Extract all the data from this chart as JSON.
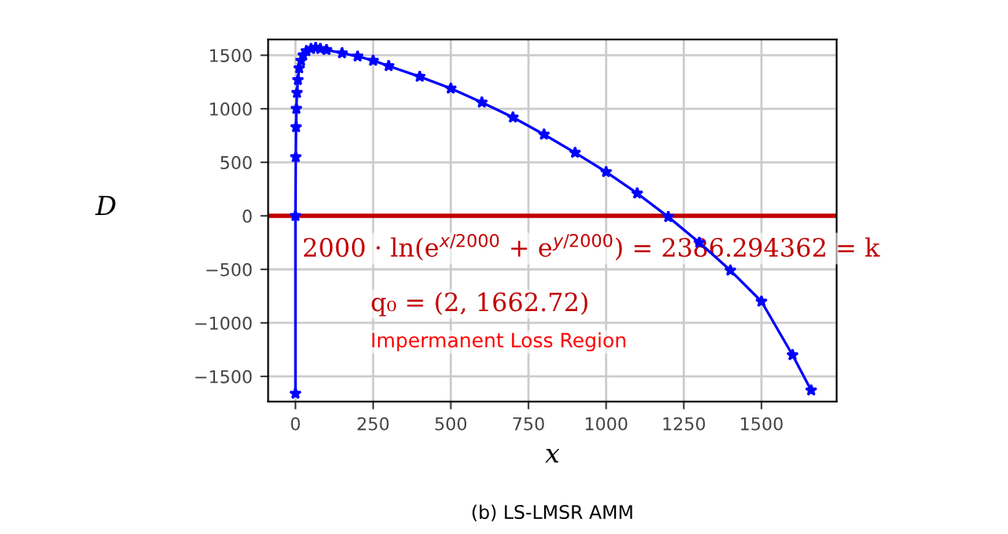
{
  "chart_data": {
    "type": "line",
    "title": "(b) LS-LMSR AMM",
    "xlabel": "x",
    "ylabel": "D",
    "annotations": [
      "2000 · ln(e$^{x/2000}$ + e$^{y/2000}$) = 2386.294362 = k",
      "q₀ = (2, 1662.72)",
      "Impermanent Loss Region"
    ],
    "series": [
      {
        "color": "#0000ff",
        "x": [
          0,
          0,
          1,
          2,
          3,
          5,
          8,
          12,
          18,
          25,
          35,
          50,
          65,
          80,
          100,
          150,
          200,
          250,
          300,
          400,
          500,
          600,
          700,
          800,
          900,
          1000,
          1100,
          1200,
          1300,
          1400,
          1500,
          1600,
          1660
        ],
        "values": [
          -1660,
          0,
          550,
          830,
          1000,
          1150,
          1270,
          1380,
          1450,
          1500,
          1540,
          1560,
          1570,
          1560,
          1550,
          1520,
          1490,
          1450,
          1400,
          1300,
          1190,
          1060,
          920,
          760,
          590,
          410,
          210,
          -10,
          -250,
          -510,
          -800,
          -1300,
          -1630
        ]
      }
    ],
    "marker": "star",
    "line_style": "solid",
    "ref_lines": [
      {
        "axis": "y",
        "value": 0,
        "color": "#c00000"
      }
    ],
    "xlim": [
      -88,
      1742
    ],
    "ylim": [
      -1735,
      1647
    ],
    "xticks": [
      0,
      250,
      500,
      750,
      1000,
      1250,
      1500
    ],
    "yticks": [
      -1500,
      -1000,
      -500,
      0,
      500,
      1000,
      1500
    ],
    "grid": true,
    "legend": false
  }
}
